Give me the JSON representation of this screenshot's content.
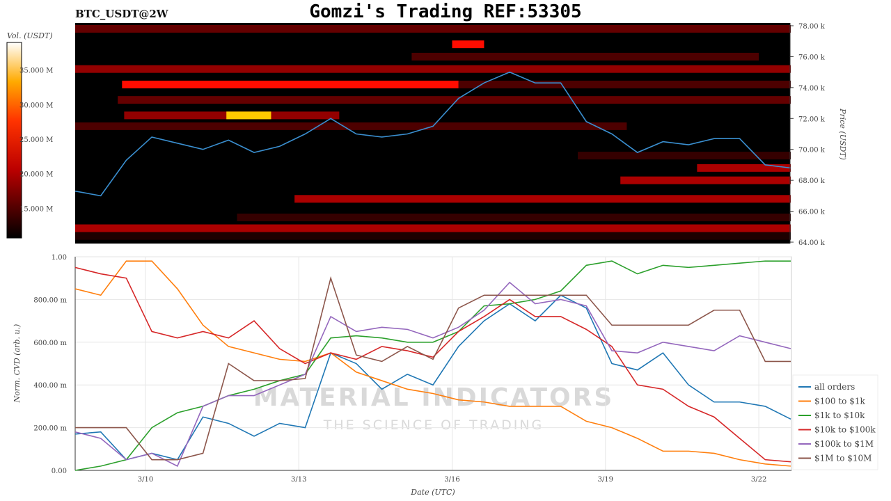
{
  "title": "Gomzi's Trading REF:53305",
  "symbol": "BTC_USDT@2W",
  "watermark": {
    "line1": "MATERIAL INDICATORS",
    "line2": "THE SCIENCE OF TRADING"
  },
  "colors": {
    "price": "#3a8fd0",
    "all orders": "#1f77b4",
    "$100 to $1k": "#ff7f0e",
    "$1k to $10k": "#2ca02c",
    "$10k to $100k": "#d62728",
    "$100k to $1M": "#9467bd",
    "$1M to $10M": "#8c564b"
  },
  "chart_data": [
    {
      "type": "heatmap",
      "title": "BTC_USDT@2W",
      "ylabel": "Price (USDT)",
      "ylim": [
        64000,
        78000
      ],
      "yticks": [
        "64.00 k",
        "66.00 k",
        "68.00 k",
        "70.00 k",
        "72.00 k",
        "74.00 k",
        "76.00 k",
        "78.00 k"
      ],
      "colorbar": {
        "label": "Vol. (USDT)",
        "range_M": [
          10.7,
          39
        ],
        "ticks": [
          "15.000 M",
          "20.000 M",
          "25.000 M",
          "30.000 M",
          "35.000 M"
        ],
        "colormap": "hot"
      },
      "xlim": [
        "3/8 15:00",
        "3/22 15:00"
      ],
      "bands": [
        {
          "price": 77800,
          "from": "3/8 15:00",
          "to": "3/22 15:00",
          "vol_M": 15
        },
        {
          "price": 76800,
          "from": "3/16 00:00",
          "to": "3/16 15:00",
          "vol_M": 22
        },
        {
          "price": 76000,
          "from": "3/15 05:00",
          "to": "3/22 00:00",
          "vol_M": 14
        },
        {
          "price": 75200,
          "from": "3/8 15:00",
          "to": "3/22 15:00",
          "vol_M": 17
        },
        {
          "price": 74200,
          "from": "3/9 13:00",
          "to": "3/16 03:00",
          "vol_M": 22
        },
        {
          "price": 74200,
          "from": "3/16 03:00",
          "to": "3/22 15:00",
          "vol_M": 14
        },
        {
          "price": 73200,
          "from": "3/9 11:00",
          "to": "3/22 15:00",
          "vol_M": 15
        },
        {
          "price": 72200,
          "from": "3/9 14:00",
          "to": "3/13 19:00",
          "vol_M": 17
        },
        {
          "price": 72200,
          "from": "3/11 14:00",
          "to": "3/12 11:00",
          "vol_M": 30
        },
        {
          "price": 71500,
          "from": "3/8 15:00",
          "to": "3/19 10:00",
          "vol_M": 14
        },
        {
          "price": 69600,
          "from": "3/18 11:00",
          "to": "3/22 15:00",
          "vol_M": 13
        },
        {
          "price": 68800,
          "from": "3/20 19:00",
          "to": "3/22 15:00",
          "vol_M": 18
        },
        {
          "price": 68000,
          "from": "3/19 07:00",
          "to": "3/22 15:00",
          "vol_M": 18
        },
        {
          "price": 66800,
          "from": "3/12 22:00",
          "to": "3/22 15:00",
          "vol_M": 18
        },
        {
          "price": 65600,
          "from": "3/11 19:00",
          "to": "3/22 15:00",
          "vol_M": 13
        },
        {
          "price": 64900,
          "from": "3/8 15:00",
          "to": "3/22 15:00",
          "vol_M": 18
        },
        {
          "price": 64400,
          "from": "3/8 15:00",
          "to": "3/22 15:00",
          "vol_M": 12
        }
      ],
      "price_line": {
        "x": [
          "3/8 15:00",
          "3/9 03:00",
          "3/9 15:00",
          "3/10 03:00",
          "3/10 15:00",
          "3/11 03:00",
          "3/11 15:00",
          "3/12 03:00",
          "3/12 15:00",
          "3/13 03:00",
          "3/13 15:00",
          "3/14 03:00",
          "3/14 15:00",
          "3/15 03:00",
          "3/15 15:00",
          "3/16 03:00",
          "3/16 15:00",
          "3/17 03:00",
          "3/17 15:00",
          "3/18 03:00",
          "3/18 15:00",
          "3/19 03:00",
          "3/19 15:00",
          "3/20 03:00",
          "3/20 15:00",
          "3/21 03:00",
          "3/21 15:00",
          "3/22 03:00",
          "3/22 15:00"
        ],
        "y": [
          67300,
          67000,
          69300,
          70800,
          70400,
          70000,
          70600,
          69800,
          70200,
          71000,
          72000,
          71000,
          70800,
          71000,
          71500,
          73300,
          74300,
          75000,
          74300,
          74300,
          71800,
          71000,
          69800,
          70500,
          70300,
          70700,
          70700,
          69000,
          68800
        ]
      }
    },
    {
      "type": "line",
      "xlabel": "Date (UTC)",
      "ylabel": "Norm. CVD (arb. u.)",
      "ylim": [
        0,
        1
      ],
      "yticks": [
        "0.00",
        "200.00 m",
        "400.00 m",
        "600.00 m",
        "800.00 m",
        "1.00"
      ],
      "xticks": [
        "3/10",
        "3/13",
        "3/16",
        "3/19",
        "3/22"
      ],
      "grid": true,
      "legend": "bottom-right",
      "x": [
        "3/8 15:00",
        "3/9 03:00",
        "3/9 15:00",
        "3/10 03:00",
        "3/10 15:00",
        "3/11 03:00",
        "3/11 15:00",
        "3/12 03:00",
        "3/12 15:00",
        "3/13 03:00",
        "3/13 15:00",
        "3/14 03:00",
        "3/14 15:00",
        "3/15 03:00",
        "3/15 15:00",
        "3/16 03:00",
        "3/16 15:00",
        "3/17 03:00",
        "3/17 15:00",
        "3/18 03:00",
        "3/18 15:00",
        "3/19 03:00",
        "3/19 15:00",
        "3/20 03:00",
        "3/20 15:00",
        "3/21 03:00",
        "3/21 15:00",
        "3/22 03:00",
        "3/22 15:00"
      ],
      "series": [
        {
          "name": "all orders",
          "values": [
            0.17,
            0.18,
            0.05,
            0.08,
            0.05,
            0.25,
            0.22,
            0.16,
            0.22,
            0.2,
            0.55,
            0.5,
            0.38,
            0.45,
            0.4,
            0.58,
            0.7,
            0.78,
            0.7,
            0.82,
            0.76,
            0.5,
            0.47,
            0.55,
            0.4,
            0.32,
            0.32,
            0.3,
            0.24
          ]
        },
        {
          "name": "$100 to $1k",
          "values": [
            0.85,
            0.82,
            0.98,
            0.98,
            0.85,
            0.68,
            0.58,
            0.55,
            0.52,
            0.51,
            0.55,
            0.46,
            0.42,
            0.38,
            0.36,
            0.33,
            0.32,
            0.3,
            0.3,
            0.3,
            0.23,
            0.2,
            0.15,
            0.09,
            0.09,
            0.08,
            0.05,
            0.03,
            0.02
          ]
        },
        {
          "name": "$1k to $10k",
          "values": [
            0.0,
            0.02,
            0.05,
            0.2,
            0.27,
            0.3,
            0.35,
            0.38,
            0.42,
            0.45,
            0.62,
            0.63,
            0.62,
            0.6,
            0.6,
            0.65,
            0.77,
            0.78,
            0.8,
            0.84,
            0.96,
            0.98,
            0.92,
            0.96,
            0.95,
            0.96,
            0.97,
            0.98,
            0.98
          ]
        },
        {
          "name": "$10k to $100k",
          "values": [
            0.95,
            0.92,
            0.9,
            0.65,
            0.62,
            0.65,
            0.62,
            0.7,
            0.57,
            0.5,
            0.55,
            0.52,
            0.58,
            0.56,
            0.53,
            0.65,
            0.72,
            0.8,
            0.72,
            0.72,
            0.66,
            0.58,
            0.4,
            0.38,
            0.3,
            0.25,
            0.15,
            0.05,
            0.04
          ]
        },
        {
          "name": "$100k to $1M",
          "values": [
            0.18,
            0.15,
            0.05,
            0.08,
            0.02,
            0.3,
            0.35,
            0.35,
            0.4,
            0.45,
            0.72,
            0.65,
            0.67,
            0.66,
            0.62,
            0.67,
            0.75,
            0.88,
            0.78,
            0.8,
            0.77,
            0.56,
            0.55,
            0.6,
            0.58,
            0.56,
            0.63,
            0.6,
            0.57
          ]
        },
        {
          "name": "$1M to $10M",
          "values": [
            0.2,
            0.2,
            0.2,
            0.05,
            0.05,
            0.08,
            0.5,
            0.42,
            0.42,
            0.43,
            0.9,
            0.54,
            0.51,
            0.58,
            0.52,
            0.76,
            0.82,
            0.82,
            0.82,
            0.82,
            0.82,
            0.68,
            0.68,
            0.68,
            0.68,
            0.75,
            0.75,
            0.51,
            0.51
          ]
        }
      ]
    }
  ]
}
